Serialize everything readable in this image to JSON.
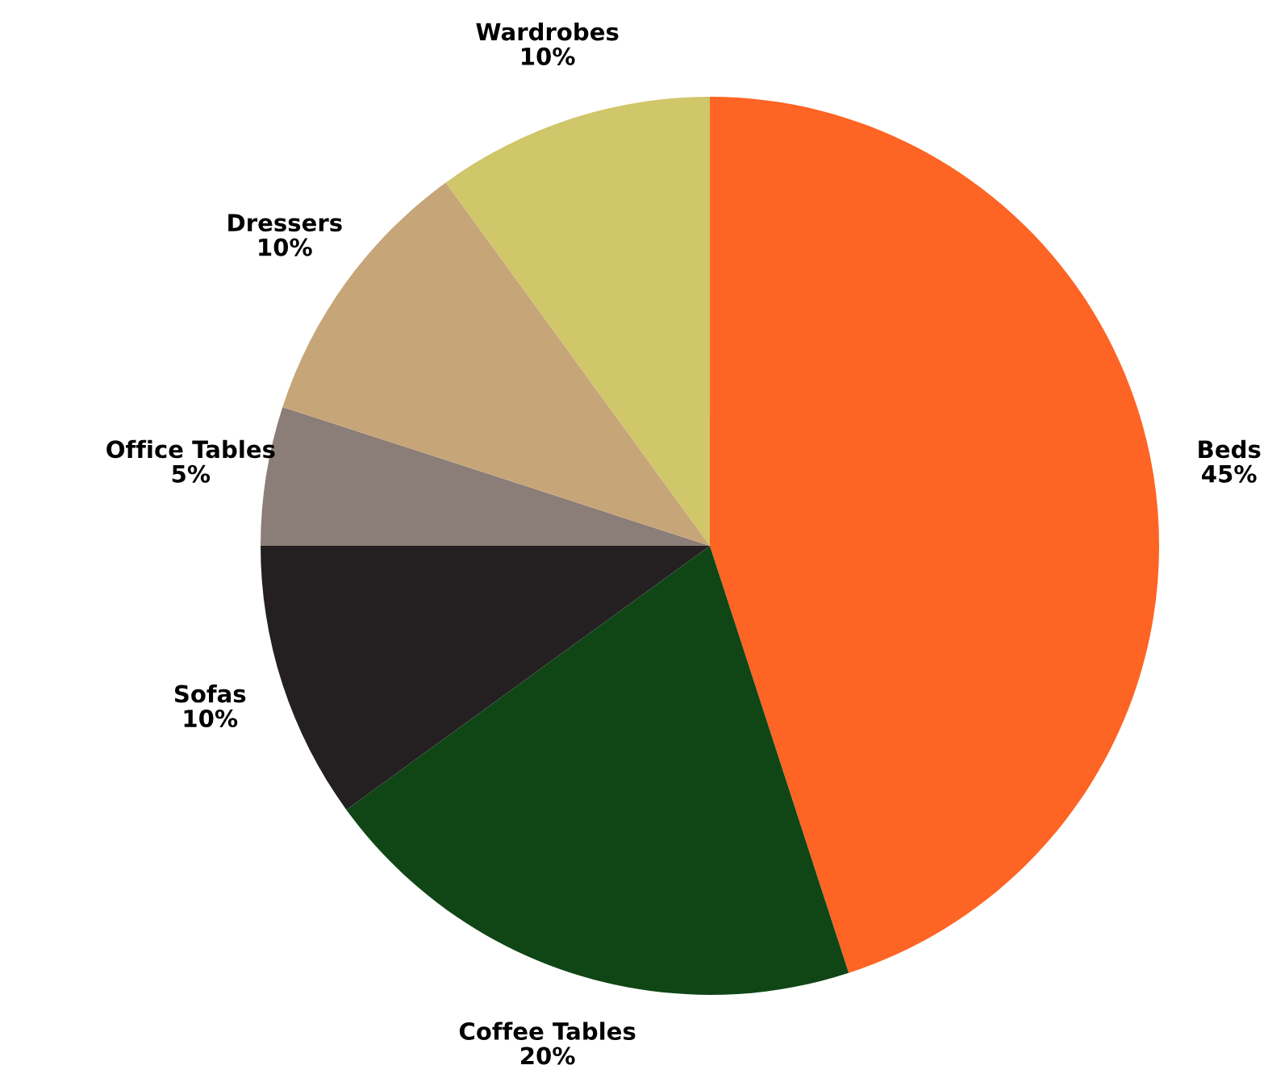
{
  "chart_data": {
    "type": "pie",
    "categories": [
      "Beds",
      "Coffee Tables",
      "Sofas",
      "Office Tables",
      "Dressers",
      "Wardrobes"
    ],
    "values": [
      45,
      20,
      10,
      5,
      10,
      10
    ],
    "value_labels": [
      "45%",
      "20%",
      "10%",
      "5%",
      "10%",
      "10%"
    ],
    "colors": [
      "#fe6423",
      "#104616",
      "#242022",
      "#8b7d77",
      "#c6a578",
      "#d0c66a"
    ],
    "legend": false
  }
}
